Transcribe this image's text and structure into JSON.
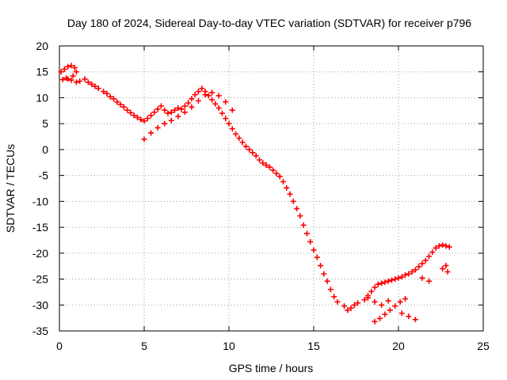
{
  "chart_data": {
    "type": "scatter",
    "title": "Day 180 of 2024, Sidereal Day-to-day VTEC variation (SDTVAR) for receiver p796",
    "xlabel": "GPS time / hours",
    "ylabel": "SDTVAR / TECUs",
    "xlim": [
      0,
      25
    ],
    "ylim": [
      -35,
      20
    ],
    "xticks": [
      0,
      5,
      10,
      15,
      20,
      25
    ],
    "yticks": [
      -35,
      -30,
      -25,
      -20,
      -15,
      -10,
      -5,
      0,
      5,
      10,
      15,
      20
    ],
    "grid": true,
    "marker": "+",
    "series": [
      {
        "name": "SDTVAR",
        "color": "#ff0000",
        "x": [
          0.1,
          0.3,
          0.5,
          0.7,
          0.9,
          1.0,
          0.8,
          0.5,
          0.2,
          0.4,
          0.7,
          1.0,
          1.2,
          1.5,
          1.7,
          1.9,
          2.1,
          2.3,
          2.6,
          2.8,
          3.0,
          3.2,
          3.4,
          3.6,
          3.8,
          4.0,
          4.2,
          4.4,
          4.6,
          4.8,
          5.0,
          5.2,
          5.4,
          5.6,
          5.8,
          6.0,
          6.2,
          6.4,
          6.6,
          6.8,
          7.0,
          7.2,
          7.4,
          7.6,
          7.8,
          8.0,
          8.2,
          8.4,
          8.6,
          8.8,
          9.0,
          9.2,
          9.4,
          9.6,
          9.8,
          10.0,
          10.2,
          10.4,
          10.6,
          10.8,
          11.0,
          11.2,
          11.4,
          11.6,
          11.8,
          12.0,
          12.2,
          12.4,
          12.6,
          12.8,
          13.0,
          13.2,
          13.4,
          13.6,
          13.8,
          14.0,
          14.2,
          14.4,
          14.6,
          14.8,
          15.0,
          15.2,
          15.4,
          15.6,
          15.8,
          16.0,
          16.2,
          16.4,
          16.8,
          17.0,
          17.2,
          17.4,
          17.6,
          18.0,
          18.2,
          18.4,
          18.6,
          18.8,
          19.0,
          19.2,
          19.4,
          19.6,
          19.8,
          20.0,
          20.2,
          20.4,
          20.6,
          20.8,
          21.0,
          21.2,
          21.4,
          21.6,
          21.8,
          22.0,
          22.2,
          22.4,
          22.6,
          22.8,
          23.0,
          5.0,
          5.4,
          5.8,
          6.2,
          6.6,
          7.0,
          7.4,
          7.8,
          8.2,
          8.6,
          9.0,
          9.4,
          9.8,
          10.2,
          18.6,
          18.9,
          19.2,
          19.5,
          19.8,
          20.1,
          20.4,
          18.2,
          18.6,
          19.0,
          19.4,
          20.2,
          20.6,
          21.0,
          21.4,
          21.8,
          22.8,
          22.6,
          22.9
        ],
        "y": [
          15.0,
          15.5,
          16.0,
          16.2,
          15.8,
          15.0,
          14.2,
          13.6,
          13.5,
          13.8,
          13.4,
          13.0,
          13.2,
          13.6,
          13.0,
          12.6,
          12.2,
          11.8,
          11.2,
          10.8,
          10.2,
          9.8,
          9.2,
          8.7,
          8.2,
          7.6,
          7.1,
          6.6,
          6.2,
          5.8,
          5.5,
          6.0,
          6.6,
          7.2,
          7.8,
          8.4,
          7.6,
          7.0,
          7.2,
          7.6,
          8.0,
          7.8,
          8.4,
          9.0,
          9.8,
          10.6,
          11.2,
          11.8,
          11.2,
          10.4,
          9.6,
          8.8,
          8.0,
          7.0,
          6.0,
          5.0,
          4.0,
          3.0,
          2.2,
          1.4,
          0.6,
          0.0,
          -0.6,
          -1.2,
          -2.0,
          -2.6,
          -3.0,
          -3.4,
          -4.0,
          -4.6,
          -5.2,
          -6.2,
          -7.4,
          -8.6,
          -10.0,
          -11.4,
          -12.8,
          -14.6,
          -16.2,
          -17.8,
          -19.4,
          -20.8,
          -22.4,
          -24.0,
          -25.4,
          -27.0,
          -28.4,
          -29.4,
          -30.2,
          -31.0,
          -30.6,
          -30.0,
          -29.6,
          -29.0,
          -28.2,
          -27.4,
          -26.6,
          -26.0,
          -25.8,
          -25.6,
          -25.4,
          -25.2,
          -25.0,
          -24.8,
          -24.6,
          -24.2,
          -24.0,
          -23.6,
          -23.2,
          -22.6,
          -22.0,
          -21.4,
          -20.6,
          -19.8,
          -19.0,
          -18.6,
          -18.4,
          -18.6,
          -18.8,
          2.0,
          3.2,
          4.2,
          5.0,
          5.6,
          6.4,
          7.2,
          8.2,
          9.4,
          10.6,
          11.0,
          10.4,
          9.2,
          7.6,
          -33.2,
          -32.6,
          -31.8,
          -31.0,
          -30.2,
          -29.4,
          -28.8,
          -28.6,
          -29.4,
          -30.0,
          -29.2,
          -31.6,
          -32.2,
          -32.8,
          -24.8,
          -25.4,
          -22.4,
          -23.0,
          -23.6
        ]
      }
    ]
  }
}
